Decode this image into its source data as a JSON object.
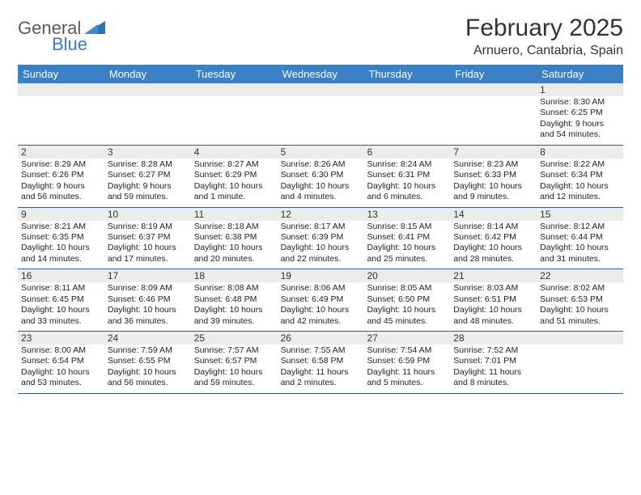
{
  "brand": {
    "word1": "General",
    "word2": "Blue",
    "word1_color": "#5a5a5a",
    "word2_color": "#3a7ec0"
  },
  "title": "February 2025",
  "location": "Arnuero, Cantabria, Spain",
  "colors": {
    "header_bg": "#3b7fc4",
    "header_text": "#ffffff",
    "daynum_bg": "#ececec",
    "divider": "#2e5d8a",
    "body_text": "#222222",
    "page_bg": "#ffffff"
  },
  "day_names": [
    "Sunday",
    "Monday",
    "Tuesday",
    "Wednesday",
    "Thursday",
    "Friday",
    "Saturday"
  ],
  "weeks": [
    {
      "nums": [
        "",
        "",
        "",
        "",
        "",
        "",
        "1"
      ],
      "cells": [
        null,
        null,
        null,
        null,
        null,
        null,
        {
          "sunrise": "8:30 AM",
          "sunset": "6:25 PM",
          "daylight": "9 hours and 54 minutes."
        }
      ]
    },
    {
      "nums": [
        "2",
        "3",
        "4",
        "5",
        "6",
        "7",
        "8"
      ],
      "cells": [
        {
          "sunrise": "8:29 AM",
          "sunset": "6:26 PM",
          "daylight": "9 hours and 56 minutes."
        },
        {
          "sunrise": "8:28 AM",
          "sunset": "6:27 PM",
          "daylight": "9 hours and 59 minutes."
        },
        {
          "sunrise": "8:27 AM",
          "sunset": "6:29 PM",
          "daylight": "10 hours and 1 minute."
        },
        {
          "sunrise": "8:26 AM",
          "sunset": "6:30 PM",
          "daylight": "10 hours and 4 minutes."
        },
        {
          "sunrise": "8:24 AM",
          "sunset": "6:31 PM",
          "daylight": "10 hours and 6 minutes."
        },
        {
          "sunrise": "8:23 AM",
          "sunset": "6:33 PM",
          "daylight": "10 hours and 9 minutes."
        },
        {
          "sunrise": "8:22 AM",
          "sunset": "6:34 PM",
          "daylight": "10 hours and 12 minutes."
        }
      ]
    },
    {
      "nums": [
        "9",
        "10",
        "11",
        "12",
        "13",
        "14",
        "15"
      ],
      "cells": [
        {
          "sunrise": "8:21 AM",
          "sunset": "6:35 PM",
          "daylight": "10 hours and 14 minutes."
        },
        {
          "sunrise": "8:19 AM",
          "sunset": "6:37 PM",
          "daylight": "10 hours and 17 minutes."
        },
        {
          "sunrise": "8:18 AM",
          "sunset": "6:38 PM",
          "daylight": "10 hours and 20 minutes."
        },
        {
          "sunrise": "8:17 AM",
          "sunset": "6:39 PM",
          "daylight": "10 hours and 22 minutes."
        },
        {
          "sunrise": "8:15 AM",
          "sunset": "6:41 PM",
          "daylight": "10 hours and 25 minutes."
        },
        {
          "sunrise": "8:14 AM",
          "sunset": "6:42 PM",
          "daylight": "10 hours and 28 minutes."
        },
        {
          "sunrise": "8:12 AM",
          "sunset": "6:44 PM",
          "daylight": "10 hours and 31 minutes."
        }
      ]
    },
    {
      "nums": [
        "16",
        "17",
        "18",
        "19",
        "20",
        "21",
        "22"
      ],
      "cells": [
        {
          "sunrise": "8:11 AM",
          "sunset": "6:45 PM",
          "daylight": "10 hours and 33 minutes."
        },
        {
          "sunrise": "8:09 AM",
          "sunset": "6:46 PM",
          "daylight": "10 hours and 36 minutes."
        },
        {
          "sunrise": "8:08 AM",
          "sunset": "6:48 PM",
          "daylight": "10 hours and 39 minutes."
        },
        {
          "sunrise": "8:06 AM",
          "sunset": "6:49 PM",
          "daylight": "10 hours and 42 minutes."
        },
        {
          "sunrise": "8:05 AM",
          "sunset": "6:50 PM",
          "daylight": "10 hours and 45 minutes."
        },
        {
          "sunrise": "8:03 AM",
          "sunset": "6:51 PM",
          "daylight": "10 hours and 48 minutes."
        },
        {
          "sunrise": "8:02 AM",
          "sunset": "6:53 PM",
          "daylight": "10 hours and 51 minutes."
        }
      ]
    },
    {
      "nums": [
        "23",
        "24",
        "25",
        "26",
        "27",
        "28",
        ""
      ],
      "cells": [
        {
          "sunrise": "8:00 AM",
          "sunset": "6:54 PM",
          "daylight": "10 hours and 53 minutes."
        },
        {
          "sunrise": "7:59 AM",
          "sunset": "6:55 PM",
          "daylight": "10 hours and 56 minutes."
        },
        {
          "sunrise": "7:57 AM",
          "sunset": "6:57 PM",
          "daylight": "10 hours and 59 minutes."
        },
        {
          "sunrise": "7:55 AM",
          "sunset": "6:58 PM",
          "daylight": "11 hours and 2 minutes."
        },
        {
          "sunrise": "7:54 AM",
          "sunset": "6:59 PM",
          "daylight": "11 hours and 5 minutes."
        },
        {
          "sunrise": "7:52 AM",
          "sunset": "7:01 PM",
          "daylight": "11 hours and 8 minutes."
        },
        null
      ]
    }
  ],
  "labels": {
    "sunrise": "Sunrise:",
    "sunset": "Sunset:",
    "daylight": "Daylight:"
  }
}
